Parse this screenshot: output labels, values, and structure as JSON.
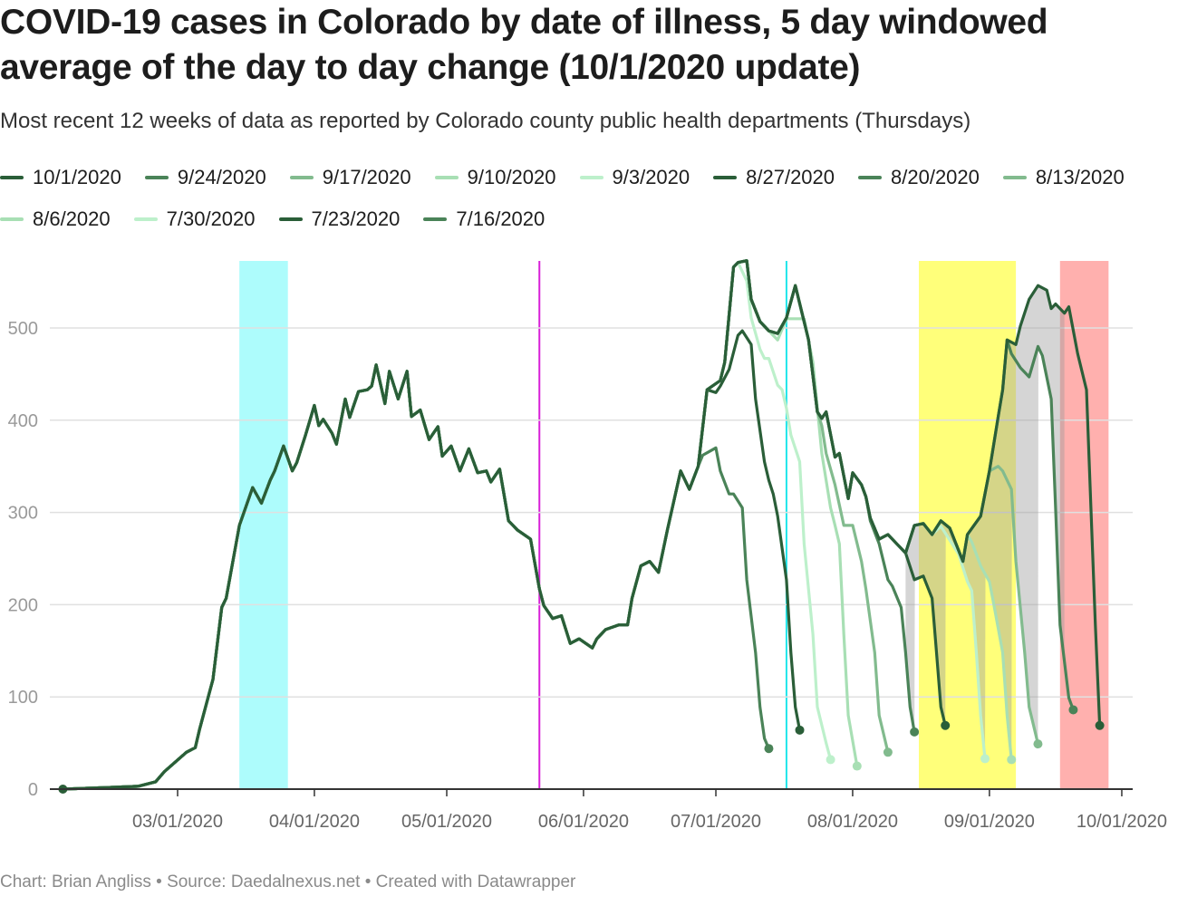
{
  "title": "COVID-19 cases in Colorado by date of illness, 5 day windowed average of the day to day change (10/1/2020 update)",
  "subtitle": "Most recent 12 weeks of data as reported by Colorado county public health departments (Thursdays)",
  "footer": "Chart: Brian Angliss • Source: Daedalnexus.net • Created with Datawrapper",
  "chart_data": {
    "type": "line",
    "title": "COVID-19 cases in Colorado by date of illness, 5 day windowed average of the day to day change (10/1/2020 update)",
    "xlabel": "",
    "ylabel": "",
    "ylim": [
      0,
      575
    ],
    "yticks": [
      "0",
      "100",
      "200",
      "300",
      "400",
      "500"
    ],
    "ytick_values": [
      0,
      100,
      200,
      300,
      400,
      500
    ],
    "xticks": [
      "03/01/2020",
      "04/01/2020",
      "05/01/2020",
      "06/01/2020",
      "07/01/2020",
      "08/01/2020",
      "09/01/2020",
      "10/01/2020"
    ],
    "xtick_dates": [
      "2020-03-01",
      "2020-04-01",
      "2020-05-01",
      "2020-06-01",
      "2020-07-01",
      "2020-08-01",
      "2020-09-01",
      "2020-10-01"
    ],
    "grid": "horizontal",
    "legend_position": "top",
    "annotations": [
      {
        "type": "band",
        "from": "2020-03-15",
        "to": "2020-03-26",
        "color": "#adfcfc"
      },
      {
        "type": "vline",
        "at": "2020-05-22",
        "color": "#d81fd8"
      },
      {
        "type": "vline",
        "at": "2020-07-17",
        "color": "#1fe5ea"
      },
      {
        "type": "band",
        "from": "2020-08-16",
        "to": "2020-09-07",
        "color": "#ffff7a"
      },
      {
        "type": "band",
        "from": "2020-09-17",
        "to": "2020-09-28",
        "color": "#ffb0ae"
      },
      {
        "type": "range_fill",
        "from": "2020-08-13",
        "to": "2020-09-18",
        "color": "#9b9b9b"
      }
    ],
    "series": [
      {
        "name": "10/1/2020",
        "color": "#2a5e38",
        "points": [
          [
            "2020-02-04",
            0
          ],
          [
            "2020-02-21",
            3
          ],
          [
            "2020-02-25",
            8
          ],
          [
            "2020-02-27",
            19
          ],
          [
            "2020-03-03",
            40
          ],
          [
            "2020-03-05",
            45
          ],
          [
            "2020-03-06",
            65
          ],
          [
            "2020-03-09",
            119
          ],
          [
            "2020-03-11",
            197
          ],
          [
            "2020-03-12",
            207
          ],
          [
            "2020-03-15",
            286
          ],
          [
            "2020-03-18",
            327
          ],
          [
            "2020-03-20",
            310
          ],
          [
            "2020-03-22",
            335
          ],
          [
            "2020-03-23",
            345
          ],
          [
            "2020-03-25",
            372
          ],
          [
            "2020-03-27",
            345
          ],
          [
            "2020-03-28",
            354
          ],
          [
            "2020-03-30",
            384
          ],
          [
            "2020-04-01",
            416
          ],
          [
            "2020-04-02",
            394
          ],
          [
            "2020-04-03",
            401
          ],
          [
            "2020-04-05",
            386
          ],
          [
            "2020-04-06",
            374
          ],
          [
            "2020-04-08",
            423
          ],
          [
            "2020-04-09",
            403
          ],
          [
            "2020-04-11",
            431
          ],
          [
            "2020-04-13",
            433
          ],
          [
            "2020-04-14",
            437
          ],
          [
            "2020-04-15",
            460
          ],
          [
            "2020-04-17",
            418
          ],
          [
            "2020-04-18",
            453
          ],
          [
            "2020-04-20",
            423
          ],
          [
            "2020-04-22",
            453
          ],
          [
            "2020-04-23",
            404
          ],
          [
            "2020-04-25",
            411
          ],
          [
            "2020-04-27",
            379
          ],
          [
            "2020-04-29",
            393
          ],
          [
            "2020-04-30",
            361
          ],
          [
            "2020-05-02",
            372
          ],
          [
            "2020-05-04",
            345
          ],
          [
            "2020-05-06",
            369
          ],
          [
            "2020-05-08",
            343
          ],
          [
            "2020-05-10",
            345
          ],
          [
            "2020-05-11",
            333
          ],
          [
            "2020-05-13",
            347
          ],
          [
            "2020-05-15",
            291
          ],
          [
            "2020-05-17",
            281
          ],
          [
            "2020-05-20",
            271
          ],
          [
            "2020-05-22",
            217
          ],
          [
            "2020-05-23",
            199
          ],
          [
            "2020-05-25",
            185
          ],
          [
            "2020-05-27",
            188
          ],
          [
            "2020-05-29",
            158
          ],
          [
            "2020-05-31",
            163
          ],
          [
            "2020-06-03",
            153
          ],
          [
            "2020-06-04",
            163
          ],
          [
            "2020-06-06",
            173
          ],
          [
            "2020-06-09",
            178
          ],
          [
            "2020-06-11",
            178
          ],
          [
            "2020-06-12",
            207
          ],
          [
            "2020-06-14",
            242
          ],
          [
            "2020-06-16",
            247
          ],
          [
            "2020-06-18",
            235
          ],
          [
            "2020-06-20",
            281
          ],
          [
            "2020-06-23",
            345
          ],
          [
            "2020-06-25",
            325
          ],
          [
            "2020-06-27",
            350
          ],
          [
            "2020-06-29",
            433
          ],
          [
            "2020-07-02",
            443
          ],
          [
            "2020-07-03",
            463
          ],
          [
            "2020-07-05",
            566
          ],
          [
            "2020-07-06",
            571
          ],
          [
            "2020-07-08",
            573
          ],
          [
            "2020-07-09",
            531
          ],
          [
            "2020-07-11",
            507
          ],
          [
            "2020-07-13",
            497
          ],
          [
            "2020-07-15",
            494
          ],
          [
            "2020-07-17",
            511
          ],
          [
            "2020-07-19",
            546
          ],
          [
            "2020-07-22",
            487
          ],
          [
            "2020-07-24",
            409
          ],
          [
            "2020-07-25",
            402
          ],
          [
            "2020-07-26",
            409
          ],
          [
            "2020-07-28",
            360
          ],
          [
            "2020-07-29",
            364
          ],
          [
            "2020-07-31",
            315
          ],
          [
            "2020-08-01",
            343
          ],
          [
            "2020-08-03",
            330
          ],
          [
            "2020-08-04",
            317
          ],
          [
            "2020-08-05",
            294
          ],
          [
            "2020-08-07",
            271
          ],
          [
            "2020-08-09",
            276
          ],
          [
            "2020-08-11",
            266
          ],
          [
            "2020-08-13",
            256
          ],
          [
            "2020-08-15",
            286
          ],
          [
            "2020-08-17",
            288
          ],
          [
            "2020-08-19",
            276
          ],
          [
            "2020-08-21",
            291
          ],
          [
            "2020-08-23",
            283
          ],
          [
            "2020-08-26",
            247
          ],
          [
            "2020-08-27",
            276
          ],
          [
            "2020-08-30",
            296
          ],
          [
            "2020-09-01",
            345
          ],
          [
            "2020-09-03",
            404
          ],
          [
            "2020-09-04",
            433
          ],
          [
            "2020-09-05",
            487
          ],
          [
            "2020-09-07",
            482
          ],
          [
            "2020-09-08",
            502
          ],
          [
            "2020-09-10",
            531
          ],
          [
            "2020-09-12",
            546
          ],
          [
            "2020-09-14",
            541
          ],
          [
            "2020-09-15",
            521
          ],
          [
            "2020-09-16",
            526
          ],
          [
            "2020-09-18",
            516
          ],
          [
            "2020-09-19",
            523
          ],
          [
            "2020-09-21",
            472
          ],
          [
            "2020-09-23",
            433
          ],
          [
            "2020-09-24",
            305
          ],
          [
            "2020-09-25",
            178
          ],
          [
            "2020-09-26",
            69
          ]
        ]
      },
      {
        "name": "9/24/2020",
        "color": "#4a8358",
        "branch_from": "10/1/2020",
        "points": [
          [
            "2020-09-06",
            472
          ],
          [
            "2020-09-08",
            457
          ],
          [
            "2020-09-10",
            447
          ],
          [
            "2020-09-12",
            480
          ],
          [
            "2020-09-13",
            470
          ],
          [
            "2020-09-15",
            423
          ],
          [
            "2020-09-16",
            305
          ],
          [
            "2020-09-17",
            178
          ],
          [
            "2020-09-19",
            99
          ],
          [
            "2020-09-20",
            86
          ]
        ]
      },
      {
        "name": "9/17/2020",
        "color": "#82bb8e",
        "branch_from": "10/1/2020",
        "points": [
          [
            "2020-09-03",
            350
          ],
          [
            "2020-09-04",
            345
          ],
          [
            "2020-09-06",
            325
          ],
          [
            "2020-09-07",
            247
          ],
          [
            "2020-09-09",
            148
          ],
          [
            "2020-09-10",
            89
          ],
          [
            "2020-09-12",
            49
          ]
        ]
      },
      {
        "name": "9/10/2020",
        "color": "#a8dfb4",
        "branch_from": "10/1/2020",
        "points": [
          [
            "2020-08-28",
            268
          ],
          [
            "2020-08-30",
            242
          ],
          [
            "2020-09-01",
            225
          ],
          [
            "2020-09-02",
            200
          ],
          [
            "2020-09-04",
            148
          ],
          [
            "2020-09-05",
            80
          ],
          [
            "2020-09-06",
            32
          ]
        ]
      },
      {
        "name": "9/3/2020",
        "color": "#bdf0cb",
        "branch_from": "10/1/2020",
        "points": [
          [
            "2020-08-21",
            285
          ],
          [
            "2020-08-23",
            270
          ],
          [
            "2020-08-25",
            255
          ],
          [
            "2020-08-27",
            225
          ],
          [
            "2020-08-28",
            215
          ],
          [
            "2020-08-29",
            150
          ],
          [
            "2020-08-30",
            80
          ],
          [
            "2020-08-31",
            33
          ]
        ]
      },
      {
        "name": "8/27/2020",
        "color": "#2a5e38",
        "branch_from": "10/1/2020",
        "points": [
          [
            "2020-08-15",
            227
          ],
          [
            "2020-08-17",
            231
          ],
          [
            "2020-08-19",
            207
          ],
          [
            "2020-08-20",
            148
          ],
          [
            "2020-08-21",
            89
          ],
          [
            "2020-08-22",
            69
          ]
        ]
      },
      {
        "name": "8/20/2020",
        "color": "#4a8358",
        "branch_from": "10/1/2020",
        "points": [
          [
            "2020-08-05",
            291
          ],
          [
            "2020-08-07",
            266
          ],
          [
            "2020-08-09",
            227
          ],
          [
            "2020-08-10",
            220
          ],
          [
            "2020-08-12",
            197
          ],
          [
            "2020-08-13",
            148
          ],
          [
            "2020-08-14",
            89
          ],
          [
            "2020-08-15",
            62
          ]
        ]
      },
      {
        "name": "8/13/2020",
        "color": "#82bb8e",
        "branch_from": "10/1/2020",
        "points": [
          [
            "2020-07-25",
            394
          ],
          [
            "2020-07-26",
            364
          ],
          [
            "2020-07-28",
            330
          ],
          [
            "2020-07-30",
            286
          ],
          [
            "2020-08-01",
            286
          ],
          [
            "2020-08-03",
            247
          ],
          [
            "2020-08-04",
            217
          ],
          [
            "2020-08-06",
            148
          ],
          [
            "2020-08-07",
            80
          ],
          [
            "2020-08-09",
            40
          ]
        ]
      },
      {
        "name": "8/6/2020",
        "color": "#a8dfb4",
        "branch_from": "10/1/2020",
        "points": [
          [
            "2020-07-15",
            487
          ],
          [
            "2020-07-17",
            510
          ],
          [
            "2020-07-19",
            510
          ],
          [
            "2020-07-21",
            510
          ],
          [
            "2020-07-23",
            463
          ],
          [
            "2020-07-25",
            364
          ],
          [
            "2020-07-27",
            305
          ],
          [
            "2020-07-28",
            286
          ],
          [
            "2020-07-29",
            266
          ],
          [
            "2020-07-30",
            168
          ],
          [
            "2020-07-31",
            80
          ],
          [
            "2020-08-02",
            25
          ]
        ]
      },
      {
        "name": "7/30/2020",
        "color": "#bdf0cb",
        "branch_from": "10/1/2020",
        "points": [
          [
            "2020-07-08",
            551
          ],
          [
            "2020-07-09",
            511
          ],
          [
            "2020-07-11",
            477
          ],
          [
            "2020-07-12",
            467
          ],
          [
            "2020-07-13",
            467
          ],
          [
            "2020-07-15",
            438
          ],
          [
            "2020-07-16",
            433
          ],
          [
            "2020-07-17",
            413
          ],
          [
            "2020-07-18",
            384
          ],
          [
            "2020-07-20",
            355
          ],
          [
            "2020-07-21",
            266
          ],
          [
            "2020-07-23",
            168
          ],
          [
            "2020-07-24",
            89
          ],
          [
            "2020-07-26",
            50
          ],
          [
            "2020-07-27",
            32
          ]
        ]
      },
      {
        "name": "7/23/2020",
        "color": "#2a5e38",
        "branch_from": "10/1/2020",
        "points": [
          [
            "2020-07-01",
            430
          ],
          [
            "2020-07-02",
            437
          ],
          [
            "2020-07-04",
            455
          ],
          [
            "2020-07-06",
            492
          ],
          [
            "2020-07-07",
            497
          ],
          [
            "2020-07-09",
            482
          ],
          [
            "2020-07-10",
            423
          ],
          [
            "2020-07-12",
            355
          ],
          [
            "2020-07-13",
            335
          ],
          [
            "2020-07-14",
            320
          ],
          [
            "2020-07-15",
            296
          ],
          [
            "2020-07-17",
            227
          ],
          [
            "2020-07-18",
            148
          ],
          [
            "2020-07-19",
            89
          ],
          [
            "2020-07-20",
            64
          ]
        ]
      },
      {
        "name": "7/16/2020",
        "color": "#4a8358",
        "branch_from": "10/1/2020",
        "points": [
          [
            "2020-06-28",
            362
          ],
          [
            "2020-07-01",
            370
          ],
          [
            "2020-07-02",
            345
          ],
          [
            "2020-07-04",
            320
          ],
          [
            "2020-07-05",
            320
          ],
          [
            "2020-07-07",
            305
          ],
          [
            "2020-07-08",
            227
          ],
          [
            "2020-07-10",
            148
          ],
          [
            "2020-07-11",
            89
          ],
          [
            "2020-07-12",
            55
          ],
          [
            "2020-07-13",
            44
          ]
        ]
      }
    ]
  }
}
